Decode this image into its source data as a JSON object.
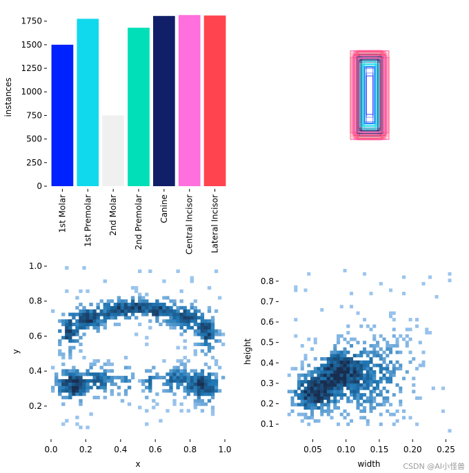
{
  "chart_data": [
    {
      "type": "bar",
      "categories": [
        "1st Molar",
        "1st Premolar",
        "2nd Molar",
        "2nd Premolar",
        "Canine",
        "Central Incisor",
        "Lateral Incisor"
      ],
      "values": [
        1500,
        1775,
        750,
        1680,
        1805,
        1815,
        1810
      ],
      "colors": [
        "#0022ff",
        "#11d9ed",
        "#f0f0f0",
        "#00dfb7",
        "#111f68",
        "#ff6fdd",
        "#ff444f"
      ],
      "title": "",
      "xlabel": "",
      "ylabel": "instances",
      "ylim": [
        0,
        1850
      ],
      "yticks": [
        "0",
        "250",
        "500",
        "750",
        "1000",
        "1250",
        "1500",
        "1750"
      ]
    },
    {
      "type": "box-overlay",
      "title": "",
      "description_series": [
        {
          "name": "Lateral Incisor",
          "color": "#ff444f"
        },
        {
          "name": "Central Incisor",
          "color": "#ff6fdd"
        },
        {
          "name": "Canine",
          "color": "#111f68"
        },
        {
          "name": "1st Premolar",
          "color": "#11d9ed"
        },
        {
          "name": "1st Molar",
          "color": "#0022ff"
        }
      ]
    },
    {
      "type": "heatmap",
      "xlabel": "x",
      "ylabel": "y",
      "xlim": [
        0,
        1
      ],
      "ylim": [
        0.05,
        1
      ],
      "xticks": [
        "0.0",
        "0.2",
        "0.4",
        "0.6",
        "0.8",
        "1.0"
      ],
      "yticks": [
        "0.2",
        "0.4",
        "0.6",
        "0.8",
        "1.0"
      ],
      "clusters": [
        {
          "x": 0.12,
          "y": 0.32,
          "sx": 0.06,
          "sy": 0.06,
          "w": 1.0
        },
        {
          "x": 0.28,
          "y": 0.35,
          "sx": 0.06,
          "sy": 0.05,
          "w": 0.7
        },
        {
          "x": 0.43,
          "y": 0.34,
          "sx": 0.03,
          "sy": 0.06,
          "w": 0.5
        },
        {
          "x": 0.57,
          "y": 0.34,
          "sx": 0.03,
          "sy": 0.06,
          "w": 0.5
        },
        {
          "x": 0.72,
          "y": 0.35,
          "sx": 0.06,
          "sy": 0.05,
          "w": 0.7
        },
        {
          "x": 0.88,
          "y": 0.32,
          "sx": 0.06,
          "sy": 0.06,
          "w": 1.0
        },
        {
          "x": 0.1,
          "y": 0.62,
          "sx": 0.04,
          "sy": 0.07,
          "w": 0.8
        },
        {
          "x": 0.22,
          "y": 0.7,
          "sx": 0.06,
          "sy": 0.05,
          "w": 0.9
        },
        {
          "x": 0.38,
          "y": 0.75,
          "sx": 0.06,
          "sy": 0.04,
          "w": 0.9
        },
        {
          "x": 0.5,
          "y": 0.77,
          "sx": 0.05,
          "sy": 0.03,
          "w": 0.7
        },
        {
          "x": 0.62,
          "y": 0.75,
          "sx": 0.06,
          "sy": 0.04,
          "w": 0.9
        },
        {
          "x": 0.78,
          "y": 0.7,
          "sx": 0.06,
          "sy": 0.05,
          "w": 0.9
        },
        {
          "x": 0.9,
          "y": 0.62,
          "sx": 0.04,
          "sy": 0.07,
          "w": 0.8
        }
      ],
      "color": "#1f77b4"
    },
    {
      "type": "heatmap",
      "xlabel": "width",
      "ylabel": "height",
      "xlim": [
        0.005,
        0.265
      ],
      "ylim": [
        0.06,
        0.86
      ],
      "xticks": [
        "0.05",
        "0.10",
        "0.15",
        "0.20",
        "0.25"
      ],
      "yticks": [
        "0.1",
        "0.2",
        "0.3",
        "0.4",
        "0.5",
        "0.6",
        "0.7",
        "0.8"
      ],
      "clusters": [
        {
          "x": 0.05,
          "y": 0.25,
          "sx": 0.02,
          "sy": 0.06,
          "w": 1.0
        },
        {
          "x": 0.09,
          "y": 0.36,
          "sx": 0.02,
          "sy": 0.06,
          "w": 0.9
        },
        {
          "x": 0.12,
          "y": 0.32,
          "sx": 0.04,
          "sy": 0.12,
          "w": 0.45
        },
        {
          "x": 0.16,
          "y": 0.38,
          "sx": 0.03,
          "sy": 0.12,
          "w": 0.2
        }
      ],
      "color": "#1f77b4"
    }
  ],
  "watermark": "CSDN @AI小怪兽"
}
